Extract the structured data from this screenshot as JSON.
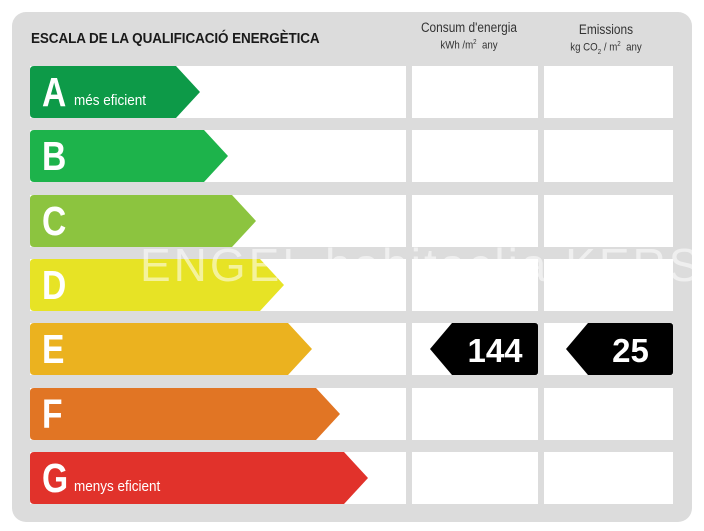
{
  "title": "ESCALA DE LA QUALIFICACIÓ ENERGÈTICA",
  "columns": {
    "consum": {
      "title": "Consum d'energia",
      "unit_pre": "kWh /m",
      "unit_sup": "2",
      "unit_post": "any"
    },
    "emissions": {
      "title": "Emissions",
      "unit_pre": "kg CO",
      "unit_sub": "2",
      "unit_mid": "/ m",
      "unit_sup": "2",
      "unit_post": "any"
    }
  },
  "scale": [
    {
      "letter": "A",
      "subtitle": "més eficient",
      "color": "#0d9a48"
    },
    {
      "letter": "B",
      "subtitle": "",
      "color": "#1db34b"
    },
    {
      "letter": "C",
      "subtitle": "",
      "color": "#8cc43f"
    },
    {
      "letter": "D",
      "subtitle": "",
      "color": "#e7e325"
    },
    {
      "letter": "E",
      "subtitle": "",
      "color": "#ebb21f"
    },
    {
      "letter": "F",
      "subtitle": "",
      "color": "#e17524"
    },
    {
      "letter": "G",
      "subtitle": "menys eficient",
      "color": "#e1322b"
    }
  ],
  "rating": {
    "letter": "E",
    "consum_value": "144",
    "emissions_value": "25",
    "tag_color": "#000000"
  },
  "watermark": "ENGEL habitaclia KERS"
}
